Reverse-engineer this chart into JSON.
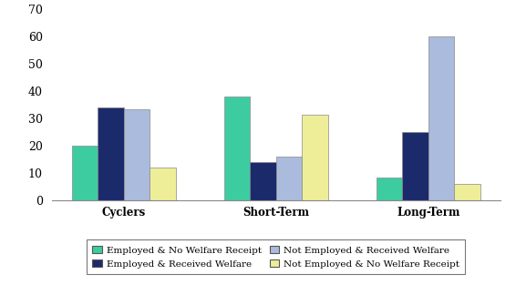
{
  "categories": [
    "Cyclers",
    "Short-Term",
    "Long-Term"
  ],
  "series": {
    "Employed & No Welfare Receipt": [
      20,
      38,
      8.5
    ],
    "Employed & Received Welfare": [
      34,
      14,
      25
    ],
    "Not Employed & Received Welfare": [
      33.5,
      16,
      60
    ],
    "Not Employed & No Welfare Receipt": [
      12,
      31.5,
      6
    ]
  },
  "colors": {
    "Employed & No Welfare Receipt": "#3DCCA0",
    "Employed & Received Welfare": "#1B2A6B",
    "Not Employed & Received Welfare": "#AABBDD",
    "Not Employed & No Welfare Receipt": "#EEEE99"
  },
  "ylim": [
    0,
    70
  ],
  "yticks": [
    0,
    10,
    20,
    30,
    40,
    50,
    60,
    70
  ],
  "bar_width": 0.17,
  "legend_order": [
    "Employed & No Welfare Receipt",
    "Employed & Received Welfare",
    "Not Employed & Received Welfare",
    "Not Employed & No Welfare Receipt"
  ],
  "background_color": "#ffffff",
  "edge_color": "#888888"
}
